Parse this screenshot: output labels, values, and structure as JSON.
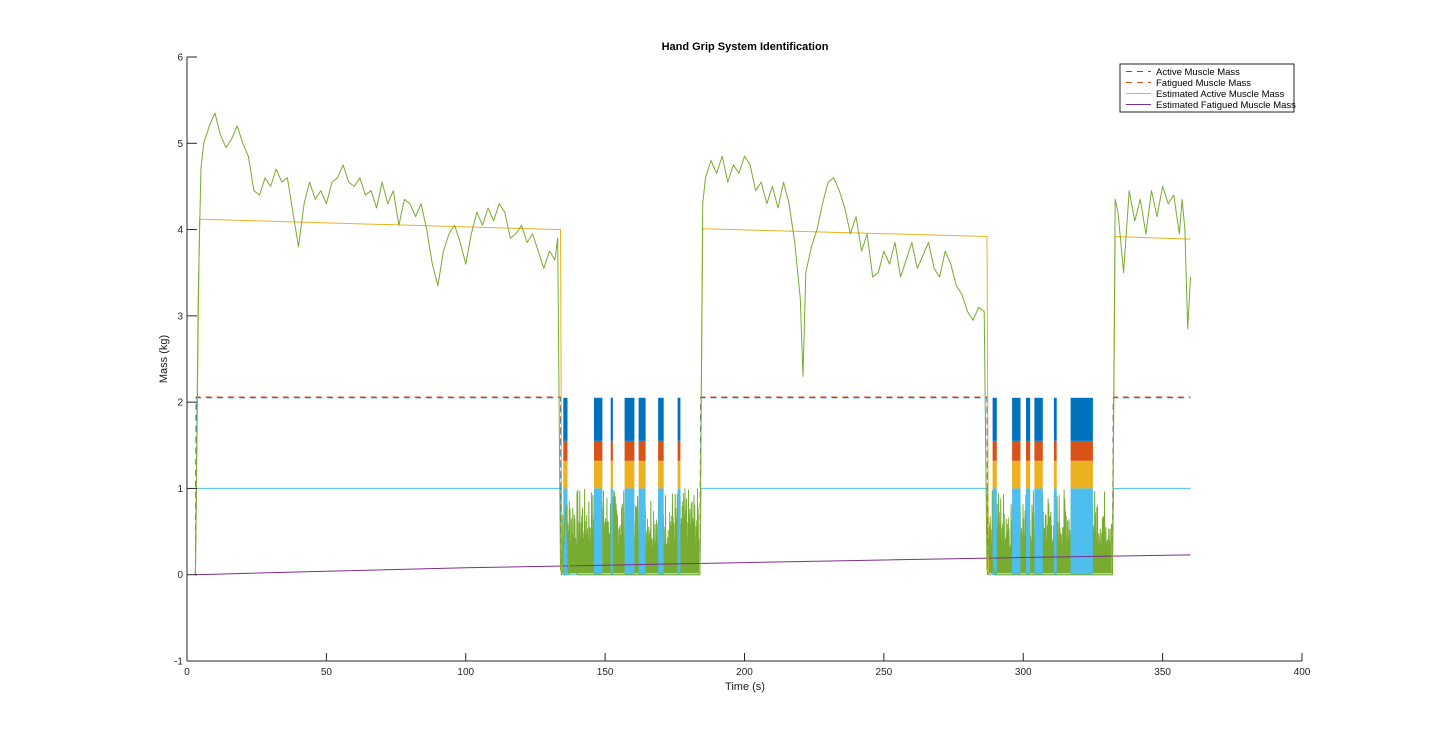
{
  "chart_data": {
    "type": "line",
    "title": "Hand Grip System Identification",
    "xlabel": "Time (s)",
    "ylabel": "Mass (kg)",
    "xlim": [
      0,
      400
    ],
    "ylim": [
      -1,
      6
    ],
    "xticks": [
      0,
      50,
      100,
      150,
      200,
      250,
      300,
      350,
      400
    ],
    "yticks": [
      -1,
      0,
      1,
      2,
      3,
      4,
      5,
      6
    ],
    "grid": false,
    "legend_position": "top-right",
    "legend": [
      {
        "label": "Active Muscle Mass",
        "color": "#0072BD",
        "style": "dashed"
      },
      {
        "label": "Fatigued Muscle Mass",
        "color": "#D95319",
        "style": "dashed"
      },
      {
        "label": "Estimated Active Muscle Mass",
        "color": "#EDB120",
        "style": "solid"
      },
      {
        "label": "Estimated Fatigued Muscle Mass",
        "color": "#7E2F8E",
        "style": "solid"
      }
    ],
    "colors": {
      "measured": "#77AC30",
      "reference": "#4DBEEE",
      "bars_blue": "#0072BD",
      "bars_orange": "#D95319",
      "bars_yellow": "#EDB120"
    },
    "gap_intervals": [
      [
        134,
        184
      ],
      [
        287,
        332
      ]
    ],
    "bursts": [
      [
        135,
        136.5
      ],
      [
        146,
        149
      ],
      [
        152,
        152.8
      ],
      [
        157,
        160.5
      ],
      [
        162,
        164.5
      ],
      [
        169,
        171
      ],
      [
        176,
        177
      ],
      [
        289,
        290.5
      ],
      [
        296,
        299
      ],
      [
        301,
        302.5
      ],
      [
        304,
        307
      ],
      [
        311,
        312
      ],
      [
        317,
        325
      ]
    ],
    "series": [
      {
        "name": "Active Muscle Mass",
        "style": "dashed",
        "segments": [
          [
            [
              3,
              0
            ],
            [
              3.3,
              2.05
            ],
            [
              134,
              2.05
            ],
            [
              134.3,
              0
            ]
          ],
          [
            [
              184,
              0
            ],
            [
              184.3,
              2.05
            ],
            [
              287,
              2.05
            ],
            [
              287.3,
              0
            ]
          ],
          [
            [
              332,
              0
            ],
            [
              332.3,
              2.05
            ],
            [
              360,
              2.05
            ]
          ]
        ]
      },
      {
        "name": "Fatigued Muscle Mass",
        "style": "dashed",
        "segments": [
          [
            [
              3,
              0
            ],
            [
              3.3,
              2.06
            ],
            [
              134,
              2.06
            ],
            [
              134.3,
              0
            ]
          ],
          [
            [
              184,
              0
            ],
            [
              184.3,
              2.06
            ],
            [
              287,
              2.06
            ],
            [
              287.3,
              0
            ]
          ],
          [
            [
              332,
              0
            ],
            [
              332.3,
              2.06
            ],
            [
              360,
              2.06
            ]
          ]
        ]
      },
      {
        "name": "Estimated Active Muscle Mass",
        "segments": [
          [
            [
              3,
              0
            ],
            [
              4.5,
              4.12
            ],
            [
              134,
              4.0
            ],
            [
              134.5,
              0
            ]
          ],
          [
            [
              184,
              0
            ],
            [
              185,
              4.01
            ],
            [
              287,
              3.92
            ],
            [
              287.5,
              0
            ]
          ],
          [
            [
              332,
              0
            ],
            [
              333,
              3.92
            ],
            [
              360,
              3.89
            ]
          ]
        ]
      },
      {
        "name": "Estimated Fatigued Muscle Mass",
        "points": [
          [
            3,
            0
          ],
          [
            50,
            0.04
          ],
          [
            100,
            0.08
          ],
          [
            150,
            0.11
          ],
          [
            200,
            0.14
          ],
          [
            250,
            0.17
          ],
          [
            300,
            0.2
          ],
          [
            360,
            0.23
          ]
        ]
      },
      {
        "points": [
          [
            3,
            0
          ],
          [
            3.4,
            1.0
          ],
          [
            134,
            1.0
          ],
          [
            134.4,
            0
          ],
          [
            184,
            0
          ],
          [
            184.4,
            1.0
          ],
          [
            287,
            1.0
          ],
          [
            287.4,
            0
          ],
          [
            332,
            0
          ],
          [
            332.4,
            1.0
          ],
          [
            360,
            1.0
          ]
        ]
      },
      {
        "points": [
          [
            3,
            0.0
          ],
          [
            4,
            3.2
          ],
          [
            5,
            4.7
          ],
          [
            6,
            5.0
          ],
          [
            8,
            5.2
          ],
          [
            10,
            5.35
          ],
          [
            12,
            5.1
          ],
          [
            14,
            4.95
          ],
          [
            16,
            5.05
          ],
          [
            18,
            5.2
          ],
          [
            20,
            5.0
          ],
          [
            22,
            4.85
          ],
          [
            24,
            4.45
          ],
          [
            26,
            4.4
          ],
          [
            28,
            4.6
          ],
          [
            30,
            4.5
          ],
          [
            32,
            4.7
          ],
          [
            34,
            4.55
          ],
          [
            36,
            4.6
          ],
          [
            38,
            4.2
          ],
          [
            40,
            3.8
          ],
          [
            42,
            4.3
          ],
          [
            44,
            4.55
          ],
          [
            46,
            4.35
          ],
          [
            48,
            4.45
          ],
          [
            50,
            4.3
          ],
          [
            52,
            4.55
          ],
          [
            54,
            4.6
          ],
          [
            56,
            4.75
          ],
          [
            58,
            4.55
          ],
          [
            60,
            4.5
          ],
          [
            62,
            4.6
          ],
          [
            64,
            4.4
          ],
          [
            66,
            4.45
          ],
          [
            68,
            4.25
          ],
          [
            70,
            4.55
          ],
          [
            72,
            4.3
          ],
          [
            74,
            4.45
          ],
          [
            76,
            4.05
          ],
          [
            78,
            4.35
          ],
          [
            80,
            4.3
          ],
          [
            82,
            4.15
          ],
          [
            84,
            4.3
          ],
          [
            86,
            4.0
          ],
          [
            88,
            3.6
          ],
          [
            90,
            3.35
          ],
          [
            92,
            3.75
          ],
          [
            94,
            3.95
          ],
          [
            96,
            4.05
          ],
          [
            98,
            3.85
          ],
          [
            100,
            3.6
          ],
          [
            102,
            3.95
          ],
          [
            104,
            4.2
          ],
          [
            106,
            4.05
          ],
          [
            108,
            4.25
          ],
          [
            110,
            4.1
          ],
          [
            112,
            4.3
          ],
          [
            114,
            4.2
          ],
          [
            116,
            3.9
          ],
          [
            118,
            3.95
          ],
          [
            120,
            4.05
          ],
          [
            122,
            3.85
          ],
          [
            124,
            3.95
          ],
          [
            126,
            3.75
          ],
          [
            128,
            3.55
          ],
          [
            130,
            3.75
          ],
          [
            132,
            3.65
          ],
          [
            133,
            3.9
          ],
          [
            134,
            0.05
          ],
          [
            135,
            0.3
          ],
          [
            136,
            0.8
          ],
          [
            137,
            0.0
          ],
          [
            138,
            0.4
          ],
          [
            139,
            0.1
          ],
          [
            140,
            0.0
          ],
          [
            184,
            0.0
          ],
          [
            185,
            4.3
          ],
          [
            186,
            4.6
          ],
          [
            188,
            4.8
          ],
          [
            190,
            4.65
          ],
          [
            192,
            4.85
          ],
          [
            194,
            4.55
          ],
          [
            196,
            4.75
          ],
          [
            198,
            4.65
          ],
          [
            200,
            4.85
          ],
          [
            202,
            4.75
          ],
          [
            204,
            4.45
          ],
          [
            206,
            4.55
          ],
          [
            208,
            4.3
          ],
          [
            210,
            4.5
          ],
          [
            212,
            4.25
          ],
          [
            214,
            4.55
          ],
          [
            216,
            4.3
          ],
          [
            218,
            3.85
          ],
          [
            220,
            3.2
          ],
          [
            221,
            2.3
          ],
          [
            222,
            3.5
          ],
          [
            224,
            3.8
          ],
          [
            226,
            4.0
          ],
          [
            228,
            4.3
          ],
          [
            230,
            4.55
          ],
          [
            232,
            4.6
          ],
          [
            234,
            4.45
          ],
          [
            236,
            4.25
          ],
          [
            238,
            3.95
          ],
          [
            240,
            4.15
          ],
          [
            242,
            3.75
          ],
          [
            244,
            3.95
          ],
          [
            246,
            3.45
          ],
          [
            248,
            3.5
          ],
          [
            250,
            3.75
          ],
          [
            252,
            3.6
          ],
          [
            254,
            3.85
          ],
          [
            256,
            3.45
          ],
          [
            258,
            3.65
          ],
          [
            260,
            3.85
          ],
          [
            262,
            3.55
          ],
          [
            264,
            3.7
          ],
          [
            266,
            3.85
          ],
          [
            268,
            3.55
          ],
          [
            270,
            3.45
          ],
          [
            272,
            3.75
          ],
          [
            274,
            3.6
          ],
          [
            276,
            3.35
          ],
          [
            278,
            3.25
          ],
          [
            280,
            3.05
          ],
          [
            282,
            2.95
          ],
          [
            284,
            3.1
          ],
          [
            286,
            3.05
          ],
          [
            287,
            0.05
          ],
          [
            288,
            0.6
          ],
          [
            289,
            0.1
          ],
          [
            290,
            0.0
          ],
          [
            332,
            0.0
          ],
          [
            333,
            4.35
          ],
          [
            334,
            4.2
          ],
          [
            336,
            3.5
          ],
          [
            338,
            4.45
          ],
          [
            340,
            4.1
          ],
          [
            342,
            4.35
          ],
          [
            344,
            3.95
          ],
          [
            346,
            4.45
          ],
          [
            348,
            4.15
          ],
          [
            350,
            4.5
          ],
          [
            352,
            4.3
          ],
          [
            354,
            4.4
          ],
          [
            356,
            3.95
          ],
          [
            357,
            4.35
          ],
          [
            358,
            4.0
          ],
          [
            359,
            2.85
          ],
          [
            360,
            3.45
          ]
        ]
      }
    ]
  }
}
